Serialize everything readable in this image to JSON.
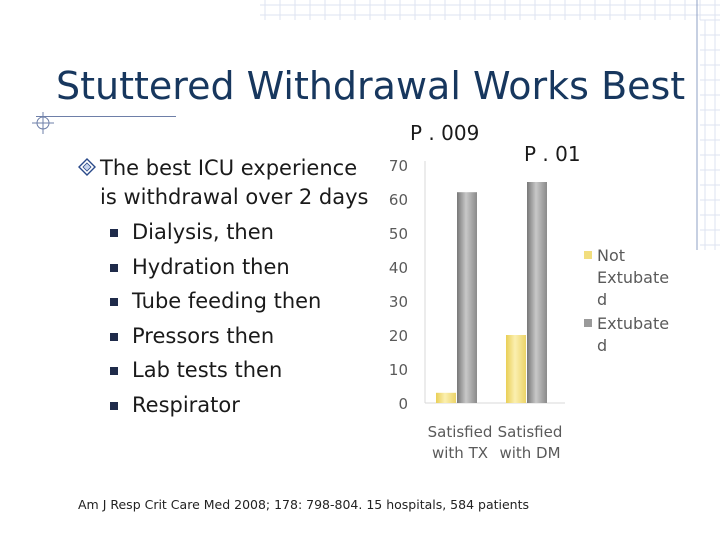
{
  "slide": {
    "title": "Stuttered Withdrawal Works Best",
    "main_bullet": "The best ICU experience is withdrawal over 2 days",
    "sub_bullets": [
      "Dialysis, then",
      "Hydration then",
      "Tube feeding then",
      "Pressors then",
      "Lab tests then",
      "Respirator"
    ],
    "p_values": [
      "P . 009",
      "P . 01"
    ],
    "citation": "Am J Resp Crit Care Med 2008; 178: 798-804. 15 hospitals, 584 patients"
  },
  "colors": {
    "title": "#17375e",
    "not_extubated": "#f2de7e",
    "extubated": "#9a9a9a",
    "axis_text": "#5a5a5a"
  },
  "chart_data": {
    "type": "bar",
    "categories": [
      [
        "Satisfied",
        "with TX"
      ],
      [
        "Satisfied",
        "with DM"
      ]
    ],
    "series": [
      {
        "name": [
          "Not",
          "Extubate",
          "d"
        ],
        "values": [
          3,
          20
        ],
        "color": "#f2de7e"
      },
      {
        "name": [
          "Extubate",
          "d"
        ],
        "values": [
          62,
          65
        ],
        "color": "#9a9a9a"
      }
    ],
    "y_ticks": [
      0,
      10,
      20,
      30,
      40,
      50,
      60,
      70
    ],
    "ylim": [
      0,
      70
    ],
    "legend_position": "right",
    "grid": false
  }
}
